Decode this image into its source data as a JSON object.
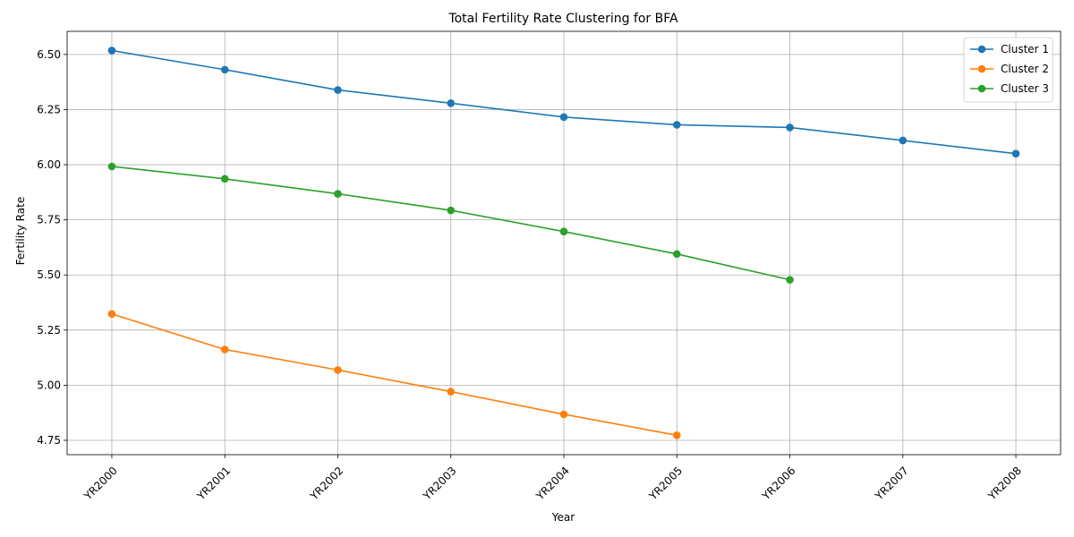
{
  "chart_data": {
    "type": "line",
    "title": "Total Fertility Rate Clustering for BFA",
    "xlabel": "Year",
    "ylabel": "Fertility Rate",
    "categories": [
      "YR2000",
      "YR2001",
      "YR2002",
      "YR2003",
      "YR2004",
      "YR2005",
      "YR2006",
      "YR2007",
      "YR2008"
    ],
    "ylim": [
      4.685,
      6.605
    ],
    "yticks": [
      "4.75",
      "5.00",
      "5.25",
      "5.50",
      "5.75",
      "6.00",
      "6.25",
      "6.50"
    ],
    "grid": true,
    "legend_position": "top-right",
    "series": [
      {
        "name": "Cluster 1",
        "color": "#1f77b4",
        "values": [
          6.518,
          6.431,
          6.339,
          6.279,
          6.216,
          6.181,
          6.169,
          6.11,
          6.05
        ]
      },
      {
        "name": "Cluster 2",
        "color": "#ff7f0e",
        "values": [
          5.323,
          5.162,
          5.069,
          4.971,
          4.868,
          4.773,
          null,
          null,
          null
        ]
      },
      {
        "name": "Cluster 3",
        "color": "#2ca02c",
        "values": [
          5.992,
          5.936,
          5.868,
          5.793,
          5.697,
          5.595,
          5.478,
          null,
          null
        ]
      }
    ]
  }
}
